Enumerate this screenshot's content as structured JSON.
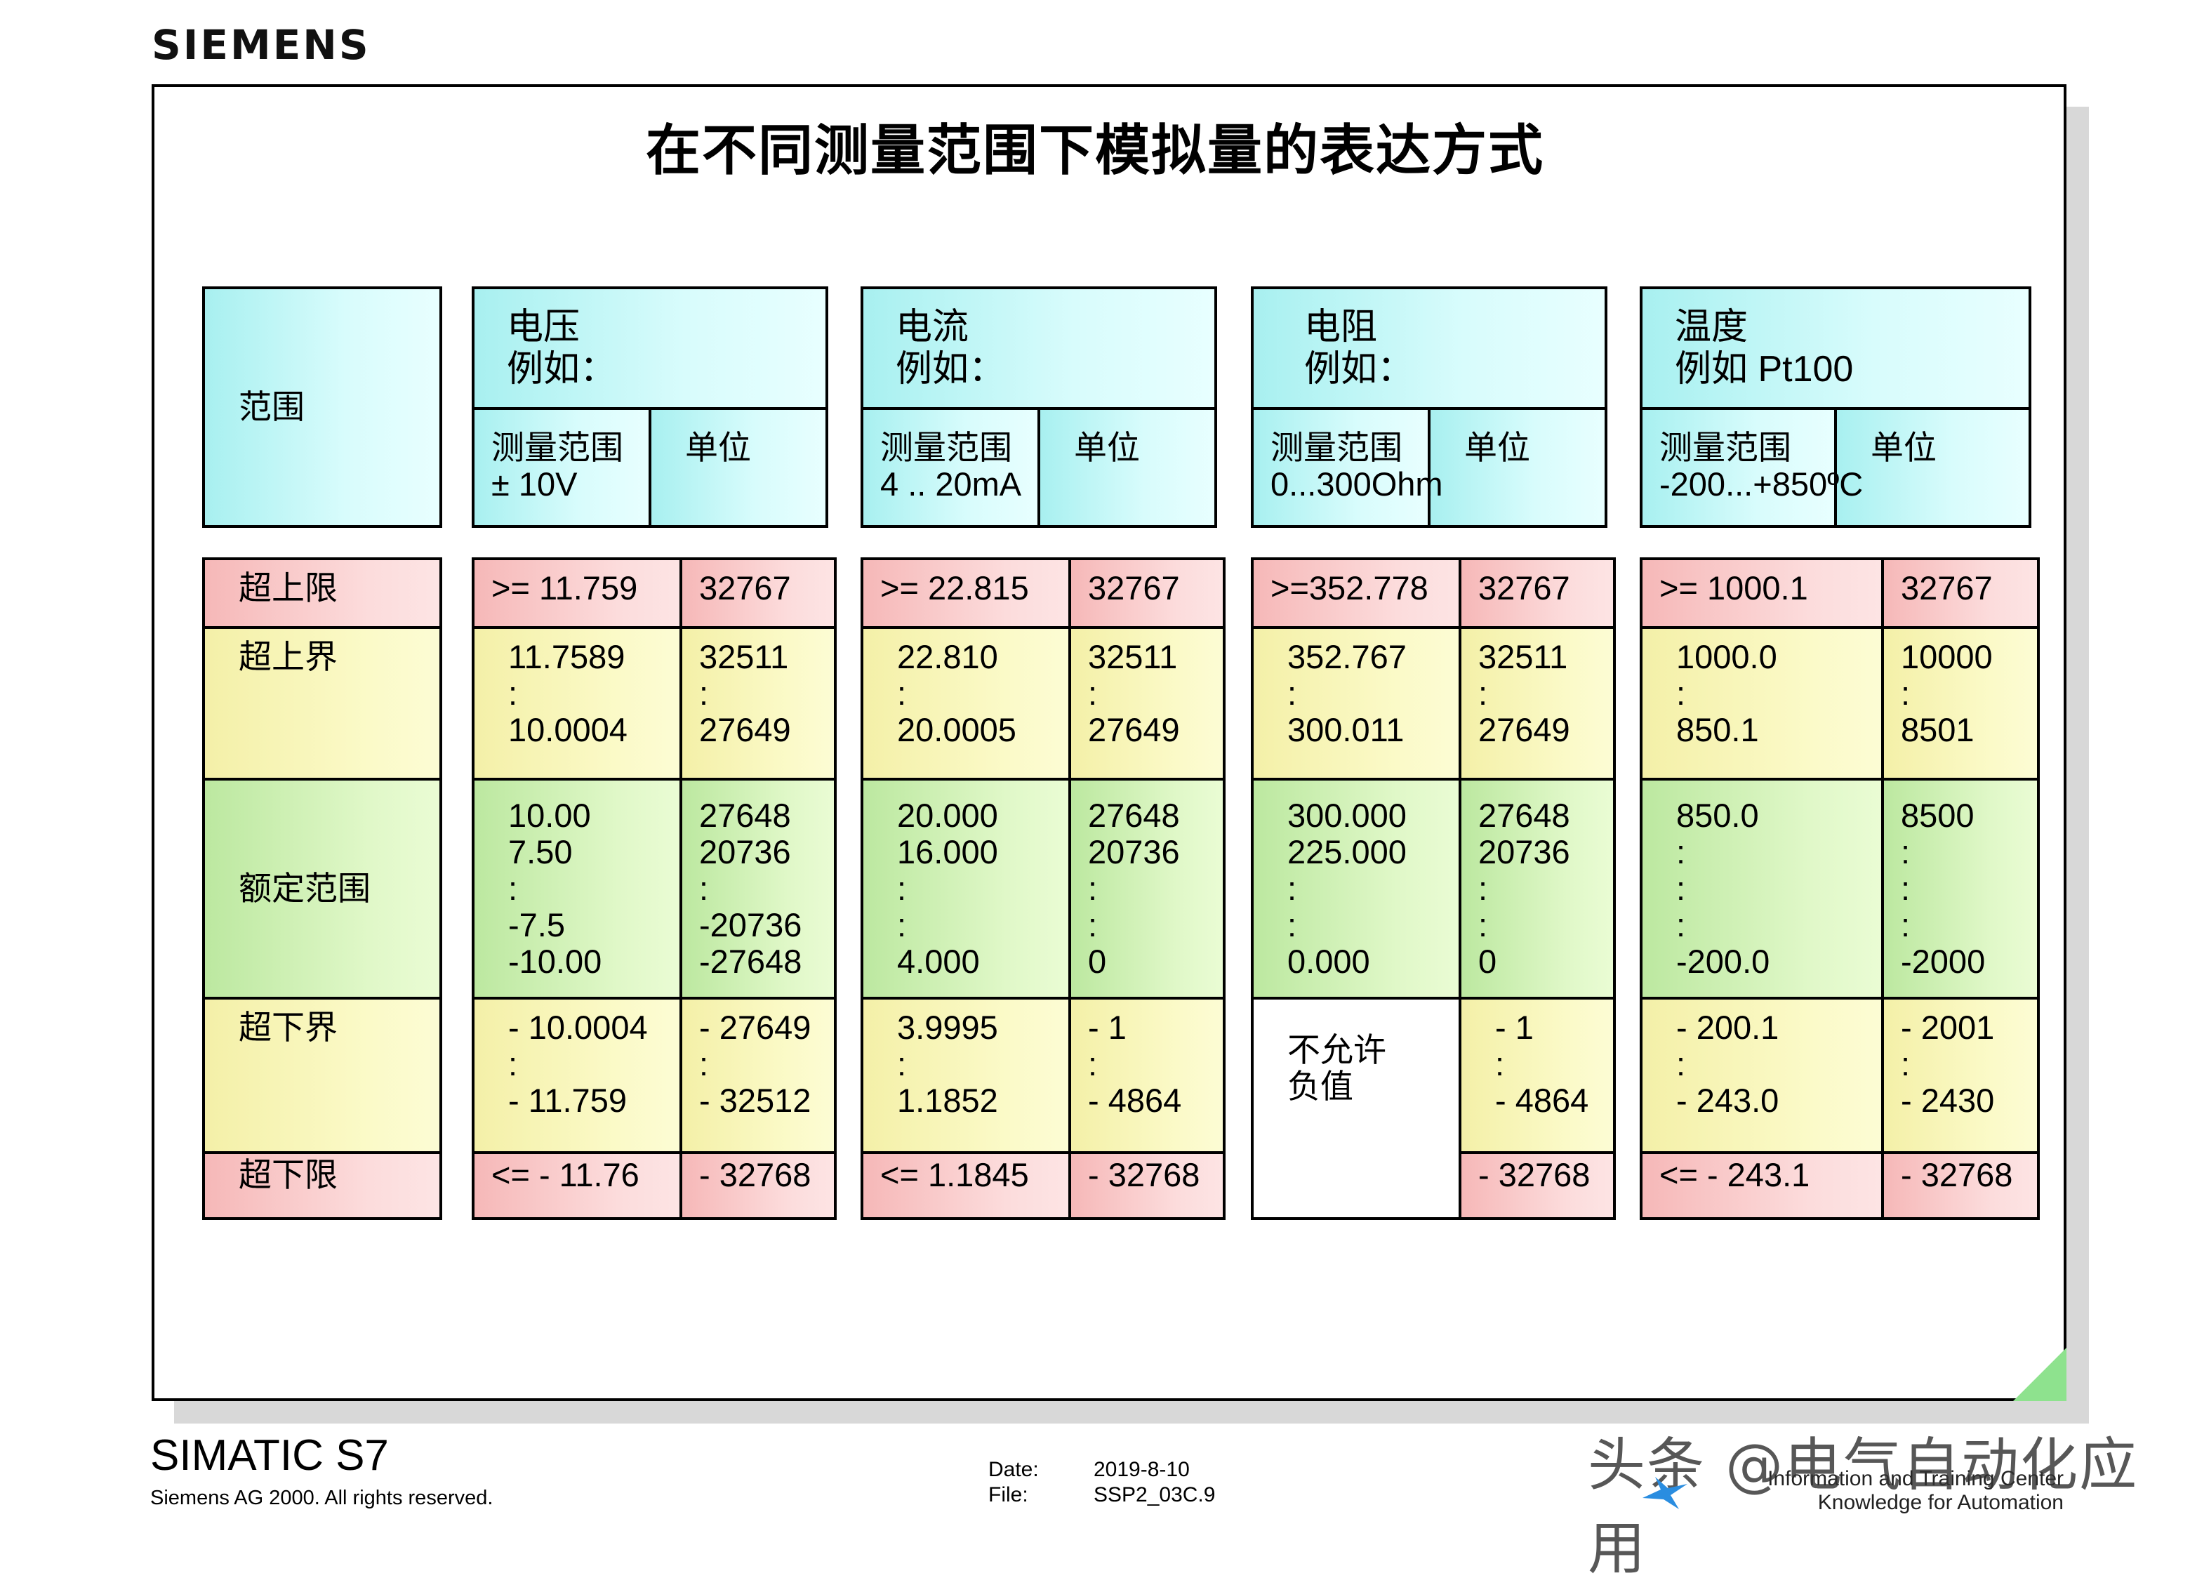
{
  "brand": "SIEMENS",
  "title": "在不同测量范围下模拟量的表达方式",
  "range_column": {
    "header": "范围",
    "rows": [
      "超上限",
      "超上界",
      "额定范围",
      "超下界",
      "超下限"
    ]
  },
  "groups": [
    {
      "header_line1": "电压",
      "header_line2": "例如：",
      "meas_label": "测量范围",
      "meas_value": "± 10V",
      "unit_label": "单位",
      "over_limit": [
        ">= 11.759",
        "32767"
      ],
      "over_range": [
        [
          "11.7589",
          ":",
          "10.0004"
        ],
        [
          "32511",
          ":",
          "27649"
        ]
      ],
      "nominal": [
        [
          "10.00",
          " 7.50",
          ":",
          "-7.5",
          "-10.00"
        ],
        [
          "27648",
          "20736",
          ":",
          "-20736",
          "-27648"
        ]
      ],
      "under_range": [
        [
          "- 10.0004",
          ":",
          "- 11.759"
        ],
        [
          "- 27649",
          ":",
          "- 32512"
        ]
      ],
      "under_limit": [
        "<= - 11.76",
        "- 32768"
      ]
    },
    {
      "header_line1": "电流",
      "header_line2": "例如：",
      "meas_label": "测量范围",
      "meas_value": "4 .. 20mA",
      "unit_label": "单位",
      "over_limit": [
        ">= 22.815",
        "32767"
      ],
      "over_range": [
        [
          "22.810",
          ":",
          "20.0005"
        ],
        [
          "32511",
          ":",
          "27649"
        ]
      ],
      "nominal": [
        [
          "20.000",
          "16.000",
          ":",
          ":",
          "4.000"
        ],
        [
          "27648",
          "20736",
          ":",
          ":",
          "0"
        ]
      ],
      "under_range": [
        [
          "3.9995",
          ":",
          "1.1852"
        ],
        [
          "- 1",
          ":",
          "- 4864"
        ]
      ],
      "under_limit": [
        "<= 1.1845",
        "- 32768"
      ]
    },
    {
      "header_line1": "电阻",
      "header_line2": "例如：",
      "meas_label": "测量范围",
      "meas_value": "0...300Ohm",
      "unit_label": "单位",
      "over_limit": [
        ">=352.778",
        "32767"
      ],
      "over_range": [
        [
          "352.767",
          ":",
          "300.011"
        ],
        [
          "32511",
          ":",
          "27649"
        ]
      ],
      "nominal": [
        [
          "300.000",
          "225.000",
          ":",
          ":",
          "0.000"
        ],
        [
          "27648",
          "20736",
          ":",
          ":",
          "0"
        ]
      ],
      "under_range": [
        [
          "不允许",
          "负值"
        ],
        [
          " - 1",
          ":",
          " - 4864"
        ]
      ],
      "under_limit": [
        "",
        "- 32768"
      ]
    },
    {
      "header_line1": "温度",
      "header_line2": "例如 Pt100",
      "meas_label": "测量范围",
      "meas_value": "-200...+850ºC",
      "unit_label": "单位",
      "over_limit": [
        ">= 1000.1",
        "32767"
      ],
      "over_range": [
        [
          "1000.0",
          ":",
          "850.1"
        ],
        [
          "10000",
          ":",
          "8501"
        ]
      ],
      "nominal": [
        [
          "850.0",
          ":",
          ":",
          ":",
          "-200.0"
        ],
        [
          "8500",
          ":",
          ":",
          ":",
          "-2000"
        ]
      ],
      "under_range": [
        [
          "- 200.1",
          ":",
          "- 243.0"
        ],
        [
          "- 2001",
          ":",
          "- 2430"
        ]
      ],
      "under_limit": [
        "<= - 243.1",
        "- 32768"
      ]
    }
  ],
  "footer": {
    "product": "SIMATIC S7",
    "copyright": "Siemens AG 2000. All rights reserved.",
    "date_label": "Date:",
    "date_value": "2019-8-10",
    "file_label": "File:",
    "file_value": "SSP2_03C.9",
    "right_line1": "Information and Training Center",
    "right_line2": "Knowledge for Automation"
  },
  "watermark": "头条 @电气自动化应用"
}
